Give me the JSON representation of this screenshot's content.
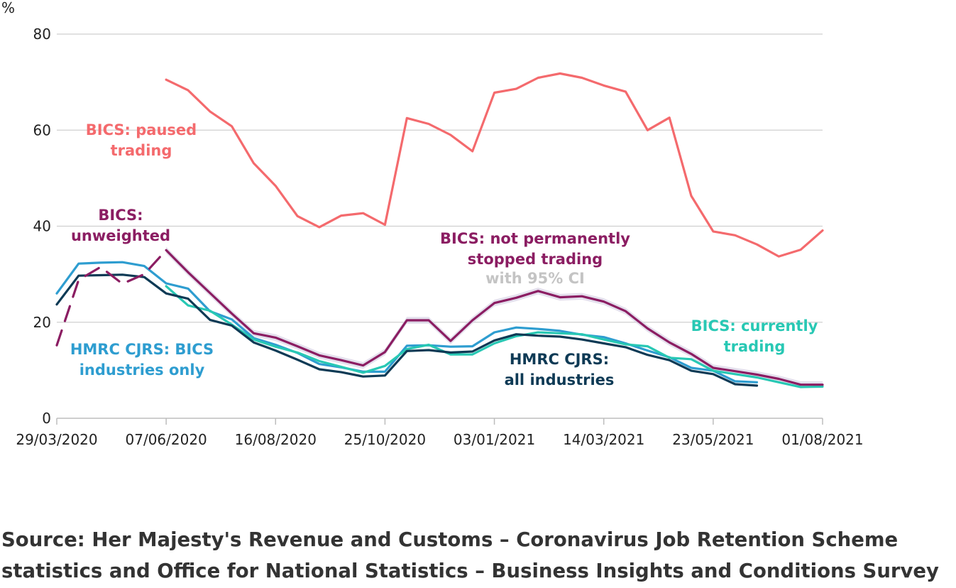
{
  "chart_data": {
    "type": "line",
    "ylabel": "%",
    "ylim": [
      0,
      80
    ],
    "y_ticks": [
      "0",
      "20",
      "40",
      "60",
      "80"
    ],
    "x_tick_labels": [
      "29/03/2020",
      "07/06/2020",
      "16/08/2020",
      "25/10/2020",
      "03/01/2021",
      "14/03/2021",
      "23/05/2021",
      "01/08/2021"
    ],
    "x_tick_values": [
      0,
      10,
      20,
      30,
      40,
      50,
      60,
      70
    ],
    "x_unit": "weeks since 29/03/2020",
    "grid": true,
    "series": [
      {
        "name": "BICS: paused trading",
        "label_lines": [
          "BICS: paused",
          "trading"
        ],
        "color": "#f46a6d",
        "x": [
          10,
          12,
          14,
          16,
          18,
          20,
          22,
          24,
          26,
          28,
          30,
          32,
          34,
          36,
          38,
          40,
          42,
          44,
          46,
          48,
          50,
          52,
          54,
          56,
          58,
          60,
          62,
          64,
          66,
          68,
          70
        ],
        "values": [
          70.5,
          68.3,
          63.9,
          60.8,
          53.1,
          48.4,
          42.1,
          39.8,
          42.2,
          42.7,
          40.3,
          62.5,
          61.3,
          59.0,
          55.6,
          67.8,
          68.6,
          70.9,
          71.8,
          70.9,
          69.3,
          68.0,
          60.0,
          62.6,
          46.3,
          38.9,
          38.1,
          36.2,
          33.7,
          35.1,
          39.1
        ]
      },
      {
        "name": "BICS: not permanently stopped trading",
        "label_lines": [
          "BICS: not permanently",
          "stopped trading"
        ],
        "ci_label": "with 95% CI",
        "color": "#8b1d62",
        "ci_color": "#d9d3e6",
        "x": [
          10,
          12,
          14,
          16,
          18,
          20,
          22,
          24,
          26,
          28,
          30,
          32,
          34,
          36,
          38,
          40,
          42,
          44,
          46,
          48,
          50,
          52,
          54,
          56,
          58,
          60,
          62,
          64,
          66,
          68,
          70
        ],
        "values": [
          35.0,
          30.4,
          26.1,
          21.8,
          17.7,
          16.8,
          15.0,
          13.1,
          12.1,
          11.0,
          13.8,
          20.4,
          20.4,
          16.1,
          20.4,
          24.0,
          25.1,
          26.5,
          25.2,
          25.4,
          24.3,
          22.3,
          18.7,
          15.8,
          13.4,
          10.5,
          9.8,
          9.1,
          8.2,
          7.0,
          7.0
        ]
      },
      {
        "name": "BICS: unweighted",
        "label_lines": [
          "BICS:",
          "unweighted"
        ],
        "color": "#8b1d62",
        "dashed": true,
        "x": [
          0,
          2,
          4,
          6,
          8,
          10
        ],
        "values": [
          15.2,
          28.8,
          31.5,
          28.0,
          30.0,
          35.0
        ]
      },
      {
        "name": "BICS: currently trading",
        "label_lines": [
          "BICS: currently",
          "trading"
        ],
        "color": "#28c8b4",
        "x": [
          10,
          12,
          14,
          16,
          18,
          20,
          22,
          24,
          26,
          28,
          30,
          32,
          34,
          36,
          38,
          40,
          42,
          44,
          46,
          48,
          50,
          52,
          54,
          56,
          58,
          60,
          62,
          64,
          66,
          68,
          70
        ],
        "values": [
          27.5,
          23.5,
          22.4,
          19.5,
          16.4,
          14.9,
          13.7,
          11.9,
          10.7,
          9.5,
          10.9,
          14.4,
          15.3,
          13.3,
          13.3,
          15.6,
          17.1,
          17.9,
          17.7,
          17.5,
          16.4,
          15.4,
          15.0,
          12.6,
          12.3,
          9.9,
          9.2,
          8.5,
          7.5,
          6.5,
          6.6
        ]
      },
      {
        "name": "HMRC CJRS: BICS industries only",
        "label_lines": [
          "HMRC CJRS: BICS",
          "industries only"
        ],
        "color": "#2e9dd0",
        "x": [
          0,
          2,
          4,
          6,
          8,
          10,
          12,
          14,
          16,
          18,
          20,
          22,
          24,
          26,
          28,
          30,
          32,
          34,
          36,
          38,
          40,
          42,
          44,
          46,
          48,
          50,
          52,
          54,
          56,
          58,
          60,
          62,
          64
        ],
        "values": [
          26.0,
          32.2,
          32.4,
          32.5,
          31.7,
          28.1,
          27.0,
          22.3,
          20.6,
          16.7,
          15.3,
          13.6,
          11.3,
          10.6,
          9.7,
          9.7,
          15.1,
          15.2,
          14.9,
          15.0,
          17.9,
          18.9,
          18.6,
          18.2,
          17.4,
          16.9,
          15.6,
          14.1,
          12.7,
          10.5,
          9.9,
          7.7,
          7.5
        ]
      },
      {
        "name": "HMRC CJRS: all industries",
        "label_lines": [
          "HMRC CJRS:",
          "all industries"
        ],
        "color": "#0e3a55",
        "x": [
          0,
          2,
          4,
          6,
          8,
          10,
          12,
          14,
          16,
          18,
          20,
          22,
          24,
          26,
          28,
          30,
          32,
          34,
          36,
          38,
          40,
          42,
          44,
          46,
          48,
          50,
          52,
          54,
          56,
          58,
          60,
          62,
          64
        ],
        "values": [
          23.7,
          29.7,
          29.8,
          29.9,
          29.4,
          26.0,
          24.9,
          20.5,
          19.3,
          15.8,
          14.1,
          12.2,
          10.2,
          9.6,
          8.7,
          8.9,
          14.0,
          14.2,
          13.7,
          13.9,
          16.2,
          17.5,
          17.2,
          17.0,
          16.4,
          15.6,
          14.8,
          13.2,
          12.1,
          9.9,
          9.2,
          7.1,
          6.8
        ]
      }
    ],
    "source": "Source: Her Majesty's Revenue and Customs – Coronavirus Job Retention Scheme statistics and Office for National Statistics – Business Insights and Conditions Survey"
  }
}
